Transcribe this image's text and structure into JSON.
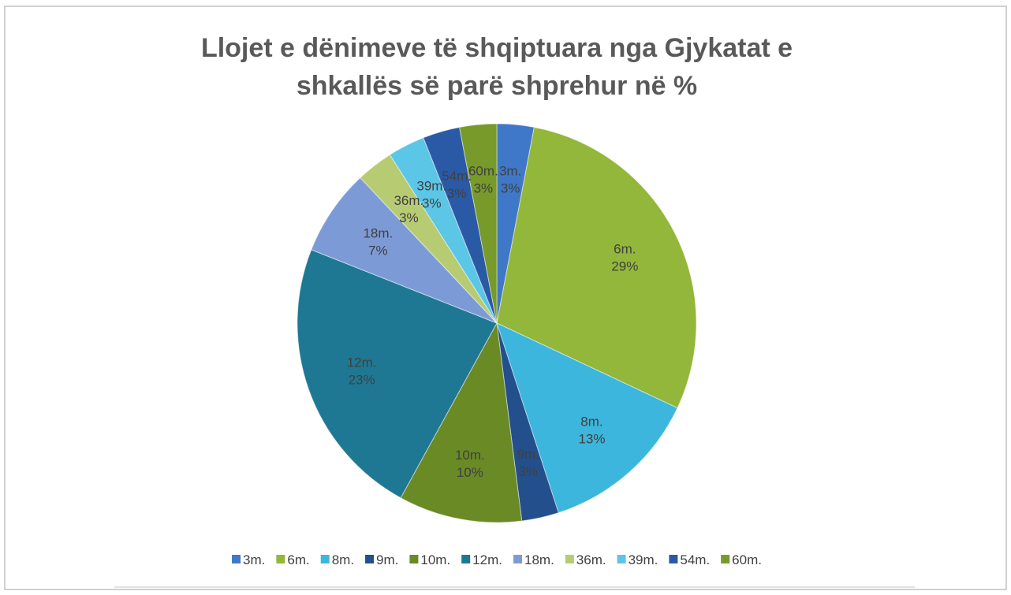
{
  "chart_data": {
    "type": "pie",
    "title": [
      "Llojet e dënimeve të shqiptuara nga Gjykatat e",
      "shkallës së parë shprehur në %"
    ],
    "categories": [
      "3m.",
      "6m.",
      "8m.",
      "9m.",
      "10m.",
      "12m.",
      "18m.",
      "36m.",
      "39m.",
      "54m.",
      "60m."
    ],
    "values": [
      3,
      29,
      13,
      3,
      10,
      23,
      7,
      3,
      3,
      3,
      3
    ],
    "value_labels": [
      "3%",
      "29%",
      "13%",
      "3%",
      "10%",
      "23%",
      "7%",
      "3%",
      "3%",
      "3%",
      "3%"
    ],
    "colors": [
      "#3f78c8",
      "#93b73a",
      "#3cb6dd",
      "#234f8c",
      "#6a8a25",
      "#1e7893",
      "#7c9bd6",
      "#b7cc72",
      "#5cc6e6",
      "#2a5aa6",
      "#789a2a"
    ],
    "legend": "bottom"
  }
}
